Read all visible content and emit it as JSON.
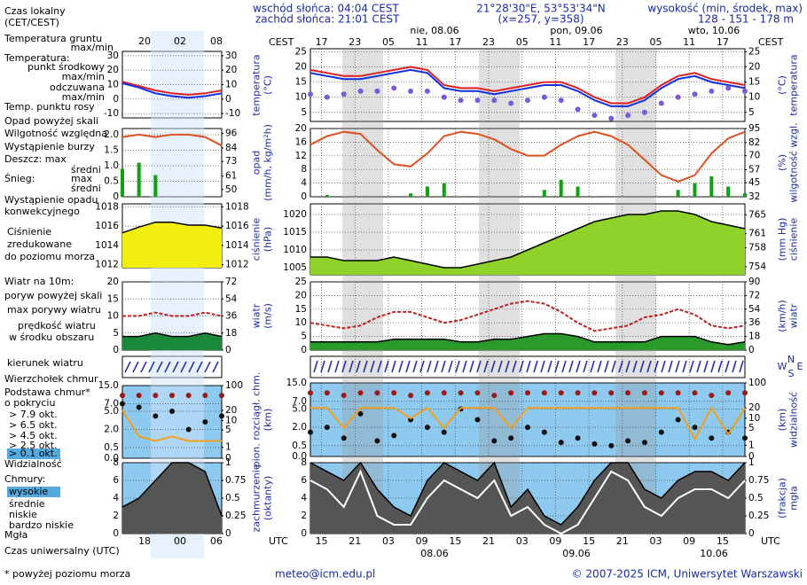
{
  "header": {
    "sunrise": "wschód słońca: 04:04 CEST",
    "sunset": "zachód słońca: 21:01 CEST",
    "coords": "21°28'30\"E, 53°53'34\"N",
    "grid": "(x=257, y=358)",
    "elevation_title": "wysokość (min, środek, max)",
    "elevation": "128 - 151 - 178 m"
  },
  "top_axis": {
    "label_left": "CEST",
    "label_right": "CEST",
    "hours": [
      "17",
      "23",
      "05",
      "11",
      "17",
      "23",
      "05",
      "11",
      "17",
      "23",
      "05",
      "11",
      "17"
    ],
    "days": [
      "nie, 08.06",
      "pon, 09.06",
      "wto, 10.06"
    ]
  },
  "bottom_axis": {
    "label_left": "UTC",
    "label_right": "UTC",
    "hours": [
      "15",
      "21",
      "03",
      "09",
      "15",
      "21",
      "03",
      "09",
      "15",
      "21",
      "03",
      "09",
      "15"
    ],
    "days": [
      "08.06",
      "09.06",
      "10.06"
    ]
  },
  "side_axis": {
    "top_hours": [
      "20",
      "02",
      "08"
    ],
    "bottom_hours": [
      "18",
      "00",
      "06"
    ]
  },
  "legend": [
    "Czas lokalny",
    "(CET/CEST)",
    "Temperatura gruntu",
    "max/min",
    "Temperatura:",
    "punkt środkowy",
    "max/min",
    "odczuwana",
    "max/min",
    "Temp. punktu rosy",
    "Opad powyżej skali",
    "Wilgotność względna",
    "Wystąpienie burzy",
    "Deszcz: max",
    "średni",
    "Śnieg:",
    "max",
    "średni",
    "Wystąpienie opadu",
    "konwekcyjnego",
    "Ciśnienie",
    "zredukowane",
    "do poziomu morza",
    "Wiatr na 10m:",
    "poryw powyżej skali",
    "max porywy wiatru",
    "prędkość wiatru",
    "w środku obszaru",
    "kierunek wiatru",
    "Wierzchołek chmur",
    "Podstawa chmur*",
    "o pokryciu",
    "> 7.9 okt.",
    "> 6.5 okt.",
    "> 4.5 okt.",
    "> 2.5 okt.",
    "> 0.1 okt.",
    "Widzialność",
    "Chmury:",
    "wysokie",
    "średnie",
    "niskie",
    "bardzo niskie",
    "Mgła",
    "Czas uniwersalny (UTC)",
    "* powyżej poziomu morza"
  ],
  "compass": [
    "W",
    "N",
    "S",
    "E"
  ],
  "footer": {
    "email": "meteo@icm.edu.pl",
    "copyright": "© 2007-2025 ICM, Uniwersytet Warszawski"
  },
  "main_panels": [
    {
      "ylabel": [
        "temperatura",
        "(°C)"
      ],
      "y2label": [
        "(°C)",
        "temperatura"
      ],
      "ylim": [
        2,
        26
      ],
      "yticks": [
        5,
        10,
        15,
        20,
        25
      ],
      "y2lim": [
        2,
        26
      ],
      "y2ticks": [
        5,
        10,
        15,
        20,
        25
      ],
      "series": [
        {
          "style": "line",
          "color": "#e02020",
          "values": [
            19,
            18,
            17,
            17,
            18,
            19,
            20,
            19,
            14,
            13,
            13,
            12,
            13,
            14,
            15,
            15,
            13,
            10,
            8,
            8,
            10,
            14,
            17,
            18,
            16,
            15,
            14
          ]
        },
        {
          "style": "line",
          "color": "#1030e0",
          "values": [
            18,
            17,
            16,
            16,
            17,
            18,
            19,
            18,
            13,
            12,
            12,
            11,
            12,
            13,
            14,
            14,
            12,
            9,
            7,
            7,
            9,
            13,
            16,
            17,
            15,
            14,
            13
          ]
        },
        {
          "style": "dots",
          "color": "#7a5ad8",
          "values": [
            11,
            10,
            11,
            12,
            12,
            13,
            12,
            12,
            10,
            9,
            9,
            9,
            8,
            9,
            10,
            9,
            6,
            4,
            3,
            4,
            5,
            8,
            10,
            11,
            12,
            13,
            12
          ]
        }
      ]
    },
    {
      "ylabel": [
        "opad",
        "(mm/h, kg/m²h)"
      ],
      "y2label": [
        "(%)",
        "wilgotność wzgl."
      ],
      "ylim": [
        0,
        20
      ],
      "yticks": [
        0,
        4,
        8,
        12,
        16,
        20
      ],
      "y2lim": [
        32,
        95
      ],
      "y2ticks": [
        32,
        45,
        57,
        70,
        82,
        95
      ],
      "series": [
        {
          "style": "bars",
          "color": "#10a010",
          "values": [
            0,
            0.5,
            0,
            0,
            0,
            0,
            1,
            3,
            4,
            0,
            0,
            0,
            0,
            0,
            2,
            5,
            3,
            0,
            0,
            0,
            0,
            0,
            2,
            4,
            6,
            3,
            1
          ]
        },
        {
          "style": "line",
          "axis": "y2",
          "color": "#e05020",
          "values": [
            80,
            88,
            92,
            90,
            75,
            62,
            60,
            72,
            88,
            92,
            90,
            85,
            76,
            70,
            70,
            80,
            88,
            92,
            88,
            80,
            66,
            52,
            46,
            52,
            72,
            86,
            92
          ]
        }
      ]
    },
    {
      "ylabel": [
        "ciśnienie",
        "(hPa)"
      ],
      "y2label": [
        "(mm Hg)",
        "ciśnienie"
      ],
      "ylim": [
        1003,
        1023
      ],
      "yticks": [
        1005,
        1010,
        1015,
        1020
      ],
      "y2lim": [
        752.3,
        767.3
      ],
      "y2ticks": [
        754,
        758,
        761,
        765
      ],
      "series": [
        {
          "style": "area",
          "color": "#8fd32a",
          "values": [
            1008,
            1008,
            1007,
            1007,
            1007,
            1008,
            1007,
            1006,
            1005,
            1005,
            1006,
            1007,
            1008,
            1010,
            1012,
            1014,
            1016,
            1018,
            1019,
            1020,
            1020,
            1021,
            1021,
            1020,
            1018,
            1017,
            1016
          ]
        }
      ]
    },
    {
      "ylabel": [
        "wiatr",
        "(m/s)"
      ],
      "y2label": [
        "(km/h)",
        "wiatr"
      ],
      "ylim": [
        0,
        25
      ],
      "yticks": [
        0,
        5,
        10,
        15,
        20,
        25
      ],
      "y2lim": [
        0,
        90
      ],
      "y2ticks": [
        0,
        18,
        36,
        54,
        72,
        90
      ],
      "series": [
        {
          "style": "area",
          "color": "#2a9a2a",
          "values": [
            3,
            3,
            3,
            3,
            3,
            4,
            4,
            4,
            4,
            3,
            3,
            4,
            4,
            5,
            6,
            6,
            5,
            3,
            3,
            3,
            3,
            5,
            5,
            5,
            3,
            2,
            3
          ]
        },
        {
          "style": "line",
          "dash": true,
          "color": "#c02020",
          "values": [
            10,
            9,
            8,
            9,
            12,
            14,
            14,
            12,
            10,
            11,
            13,
            15,
            17,
            18,
            17,
            14,
            10,
            7,
            8,
            9,
            12,
            13,
            15,
            13,
            9,
            8,
            9
          ]
        }
      ]
    },
    {
      "ylabel": [],
      "y2label": [],
      "series": []
    },
    {
      "ylabel": [
        "pion. rozciągł. chm.",
        "(km)"
      ],
      "y2label": [
        "(km)",
        "widzialność"
      ],
      "scale": "log1p",
      "ylim": [
        0,
        15
      ],
      "yticks": [
        {
          "value": 0,
          "label": "0.0"
        },
        0.5,
        {
          "value": 2,
          "label": "2.0"
        },
        {
          "value": 5,
          "label": "5.0"
        },
        {
          "value": 7,
          "label": "7.0"
        },
        {
          "value": 15,
          "label": "15.0"
        }
      ],
      "y2lim": [
        0,
        100
      ],
      "y2ticks": [
        0,
        1,
        5,
        10,
        20,
        100
      ],
      "background": "#8ec9ef",
      "series": [
        {
          "style": "dots",
          "color": "#9a1a1a",
          "values": [
            10,
            10,
            9,
            10,
            10,
            10,
            9,
            10,
            10,
            10,
            10,
            9,
            10,
            10,
            10,
            10,
            10,
            10,
            10,
            10,
            10,
            10,
            10,
            10,
            9,
            10,
            10
          ]
        },
        {
          "style": "dots",
          "color": "#111",
          "values": [
            1.5,
            2,
            1,
            4,
            0.8,
            1.2,
            3,
            2,
            1.5,
            5,
            3,
            0.8,
            1,
            2,
            1.5,
            0.7,
            1,
            0.6,
            0.5,
            0.8,
            0.7,
            1.5,
            3,
            2,
            1,
            1.5,
            1
          ]
        },
        {
          "style": "line",
          "axis": "y2",
          "color": "#f0a020",
          "values": [
            20,
            20,
            5,
            20,
            20,
            20,
            10,
            20,
            5,
            20,
            20,
            20,
            5,
            20,
            20,
            20,
            20,
            20,
            20,
            20,
            20,
            20,
            20,
            2,
            20,
            3,
            20
          ]
        }
      ]
    },
    {
      "ylabel": [
        "zachmurzenie",
        "(oktanty)"
      ],
      "y2label": [
        "(frakcja)",
        "mgła"
      ],
      "ylim": [
        0,
        8
      ],
      "yticks": [
        0,
        2,
        4,
        6,
        8
      ],
      "y2lim": [
        0,
        1
      ],
      "y2ticks": [
        0,
        0.25,
        0.5,
        0.75,
        1
      ],
      "background": "#8ec9ef",
      "series": [
        {
          "style": "area",
          "color": "#555",
          "values": [
            8,
            7,
            6,
            8,
            5,
            3,
            2,
            6,
            8,
            7,
            6,
            8,
            3,
            5,
            2,
            1,
            3,
            6,
            8,
            8,
            5,
            4,
            6,
            7,
            7,
            6,
            8
          ]
        },
        {
          "style": "line",
          "color": "#ffffff",
          "values": [
            6,
            5,
            3,
            7,
            2,
            1,
            1,
            4,
            6,
            5,
            4,
            6,
            2,
            3,
            1,
            0,
            1,
            4,
            7,
            6,
            3,
            2,
            4,
            5,
            5,
            4,
            6
          ]
        }
      ]
    }
  ],
  "side_panels": [
    {
      "ylim": [
        -13,
        33
      ],
      "yticks": [
        -10,
        0,
        10,
        20,
        30
      ],
      "y2lim": [
        -13,
        33
      ],
      "y2ticks": [
        -10,
        0,
        10,
        20,
        30
      ],
      "series": [
        {
          "style": "line",
          "color": "#e02020",
          "values": [
            12,
            9,
            6,
            4,
            3,
            4,
            6
          ]
        },
        {
          "style": "line",
          "color": "#1030e0",
          "values": [
            11,
            8,
            4,
            2,
            1,
            2,
            4
          ]
        }
      ]
    },
    {
      "ylim": [
        0,
        2.2
      ],
      "yticks": [
        0,
        0.5,
        {
          "value": 1,
          "label": "1.0"
        },
        1.5,
        {
          "value": 2,
          "label": "2.0"
        }
      ],
      "y2lim": [
        44,
        100
      ],
      "y2ticks": [
        50,
        61,
        73,
        84,
        96
      ],
      "series": [
        {
          "style": "bars",
          "color": "#10a010",
          "values": [
            0.9,
            1.1,
            0.7,
            0,
            0,
            0,
            0
          ]
        },
        {
          "style": "line",
          "axis": "y2",
          "color": "#e05020",
          "values": [
            93,
            95,
            93,
            95,
            95,
            93,
            86
          ]
        }
      ]
    },
    {
      "ylim": [
        1011.7,
        1018.3
      ],
      "yticks": [
        1012,
        1014,
        1016,
        1018
      ],
      "y2lim": [
        1011.7,
        1018.3
      ],
      "y2ticks": [
        1012,
        1014,
        1016,
        1018
      ],
      "series": [
        {
          "style": "area",
          "color": "#f2ee10",
          "values": [
            1015.3,
            1015.9,
            1016.4,
            1016.4,
            1016.1,
            1016.1,
            1015.8
          ]
        }
      ]
    },
    {
      "ylim": [
        0,
        20
      ],
      "yticks": [
        0,
        5,
        10,
        15,
        20
      ],
      "y2lim": [
        0,
        72
      ],
      "y2ticks": [
        0,
        18,
        36,
        54,
        72
      ],
      "series": [
        {
          "style": "area",
          "color": "#1a8a3a",
          "values": [
            4,
            4,
            5,
            4,
            4,
            5,
            4
          ]
        },
        {
          "style": "line",
          "dash": true,
          "color": "#c02020",
          "values": [
            10,
            10,
            11,
            10,
            10,
            11,
            10
          ]
        }
      ]
    },
    {
      "series": []
    },
    {
      "scale": "log1p",
      "ylim": [
        0,
        15
      ],
      "yticks": [
        {
          "value": 0,
          "label": "0.0"
        },
        0.5,
        {
          "value": 2,
          "label": "2.0"
        },
        {
          "value": 5,
          "label": "5.0"
        },
        {
          "value": 7,
          "label": "7.0"
        },
        {
          "value": 15,
          "label": "15.0"
        }
      ],
      "y2lim": [
        0,
        100
      ],
      "y2ticks": [
        0,
        1,
        5,
        10,
        20,
        100
      ],
      "background": "#8ec9ef",
      "series": [
        {
          "style": "dots",
          "color": "#9a1a1a",
          "values": [
            10,
            10,
            10,
            10,
            10,
            10,
            10
          ]
        },
        {
          "style": "dots",
          "color": "#111",
          "values": [
            7,
            6,
            4,
            5,
            2,
            3,
            4
          ]
        },
        {
          "style": "line",
          "axis": "y2",
          "color": "#f0a020",
          "values": [
            20,
            3,
            2,
            3,
            2,
            2,
            2
          ]
        }
      ]
    },
    {
      "ylim": [
        0,
        8
      ],
      "yticks": [
        0,
        2,
        4,
        6,
        8
      ],
      "y2lim": [
        0,
        1
      ],
      "y2ticks": [
        0,
        0.25,
        0.5,
        0.75,
        1
      ],
      "background": "#8ec9ef",
      "series": [
        {
          "style": "area",
          "color": "#555",
          "values": [
            3,
            4,
            6,
            8,
            8,
            7,
            2
          ]
        }
      ]
    }
  ]
}
